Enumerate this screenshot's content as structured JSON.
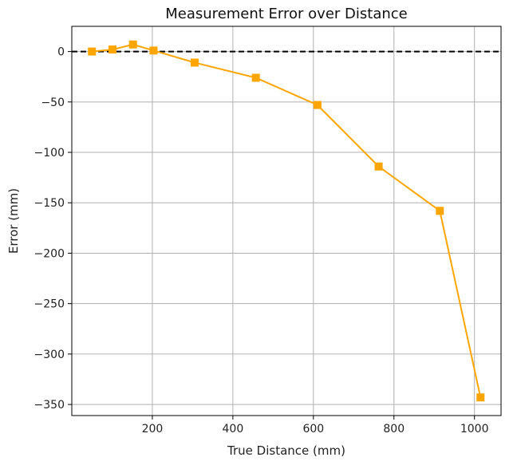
{
  "chart_data": {
    "type": "line",
    "title": "Measurement Error over Distance",
    "xlabel": "True Distance (mm)",
    "ylabel": "Error (mm)",
    "xlim": [
      0,
      1066
    ],
    "ylim": [
      -361,
      25
    ],
    "xticks": [
      200,
      400,
      600,
      800,
      1000
    ],
    "yticks": [
      0,
      -50,
      -100,
      -150,
      -200,
      -250,
      -300,
      -350
    ],
    "xtick_labels": [
      "200",
      "400",
      "600",
      "800",
      "1000"
    ],
    "ytick_labels": [
      "0",
      "−50",
      "−100",
      "−150",
      "−200",
      "−250",
      "−300",
      "−350"
    ],
    "grid": true,
    "reference_line": {
      "y": 0,
      "style": "dashed",
      "color": "#000000"
    },
    "series": [
      {
        "color": "#FFA500",
        "marker": "square",
        "x": [
          50,
          101,
          152,
          203,
          305,
          457,
          610,
          762,
          914,
          1015
        ],
        "y": [
          0,
          2,
          7,
          1,
          -11,
          -26,
          -53,
          -114,
          -158,
          -343
        ]
      }
    ]
  }
}
